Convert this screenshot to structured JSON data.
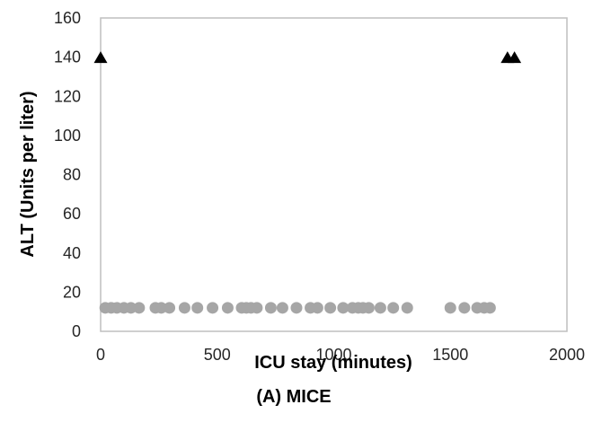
{
  "chart_data": {
    "type": "scatter",
    "title": "",
    "caption": "(A) MICE",
    "xlabel": "ICU stay (minutes)",
    "ylabel": "ALT (Units per liter)",
    "xlim": [
      0,
      2000
    ],
    "ylim": [
      0,
      160
    ],
    "x_ticks": [
      0,
      500,
      1000,
      1500,
      2000
    ],
    "y_ticks": [
      0,
      20,
      40,
      60,
      80,
      100,
      120,
      140,
      160
    ],
    "grid": false,
    "legend": "none",
    "series": [
      {
        "marker": "circle",
        "color": "#a6a6a6",
        "points": [
          {
            "x": 20,
            "y": 12
          },
          {
            "x": 45,
            "y": 12
          },
          {
            "x": 70,
            "y": 12
          },
          {
            "x": 100,
            "y": 12
          },
          {
            "x": 130,
            "y": 12
          },
          {
            "x": 165,
            "y": 12
          },
          {
            "x": 235,
            "y": 12
          },
          {
            "x": 260,
            "y": 12
          },
          {
            "x": 295,
            "y": 12
          },
          {
            "x": 360,
            "y": 12
          },
          {
            "x": 415,
            "y": 12
          },
          {
            "x": 480,
            "y": 12
          },
          {
            "x": 545,
            "y": 12
          },
          {
            "x": 605,
            "y": 12
          },
          {
            "x": 625,
            "y": 12
          },
          {
            "x": 645,
            "y": 12
          },
          {
            "x": 670,
            "y": 12
          },
          {
            "x": 730,
            "y": 12
          },
          {
            "x": 780,
            "y": 12
          },
          {
            "x": 840,
            "y": 12
          },
          {
            "x": 900,
            "y": 12
          },
          {
            "x": 930,
            "y": 12
          },
          {
            "x": 985,
            "y": 12
          },
          {
            "x": 1040,
            "y": 12
          },
          {
            "x": 1080,
            "y": 12
          },
          {
            "x": 1105,
            "y": 12
          },
          {
            "x": 1125,
            "y": 12
          },
          {
            "x": 1150,
            "y": 12
          },
          {
            "x": 1200,
            "y": 12
          },
          {
            "x": 1255,
            "y": 12
          },
          {
            "x": 1315,
            "y": 12
          },
          {
            "x": 1500,
            "y": 12
          },
          {
            "x": 1560,
            "y": 12
          },
          {
            "x": 1615,
            "y": 12
          },
          {
            "x": 1645,
            "y": 12
          },
          {
            "x": 1670,
            "y": 12
          }
        ]
      },
      {
        "marker": "triangle",
        "color": "#000000",
        "points": [
          {
            "x": 0,
            "y": 140
          },
          {
            "x": 1745,
            "y": 140
          },
          {
            "x": 1775,
            "y": 140
          }
        ]
      }
    ]
  }
}
